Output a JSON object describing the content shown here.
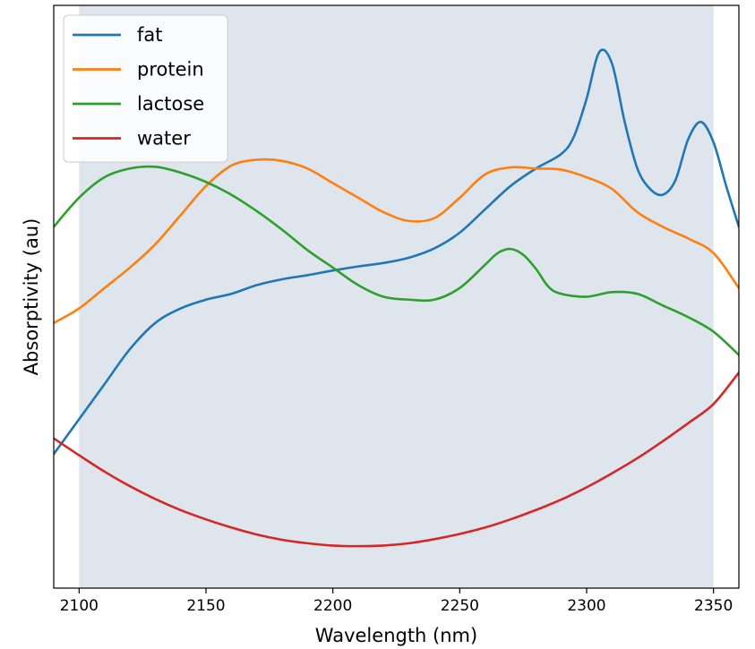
{
  "chart_data": {
    "type": "line",
    "title": "",
    "xlabel": "Wavelength (nm)",
    "ylabel": "Absorptivity (au)",
    "xlim": [
      2090,
      2360
    ],
    "ylim": [
      0,
      1
    ],
    "xticks": [
      2100,
      2150,
      2200,
      2250,
      2300,
      2350
    ],
    "yticks": [],
    "grid": false,
    "legend_position": "upper-left",
    "shaded_region": {
      "x_start": 2100,
      "x_end": 2350,
      "color": "#dfe5ec"
    },
    "series": [
      {
        "name": "fat",
        "color": "#1f77b4",
        "x": [
          2090,
          2100,
          2110,
          2120,
          2130,
          2140,
          2150,
          2160,
          2170,
          2180,
          2190,
          2200,
          2210,
          2220,
          2230,
          2240,
          2250,
          2260,
          2270,
          2280,
          2290,
          2295,
          2300,
          2305,
          2310,
          2315,
          2320,
          2325,
          2330,
          2335,
          2340,
          2345,
          2350,
          2355,
          2360
        ],
        "y": [
          0.23,
          0.29,
          0.35,
          0.41,
          0.455,
          0.48,
          0.495,
          0.505,
          0.52,
          0.53,
          0.537,
          0.545,
          0.552,
          0.558,
          0.567,
          0.583,
          0.61,
          0.65,
          0.69,
          0.72,
          0.745,
          0.775,
          0.84,
          0.92,
          0.9,
          0.8,
          0.72,
          0.685,
          0.675,
          0.7,
          0.77,
          0.8,
          0.765,
          0.69,
          0.62
        ]
      },
      {
        "name": "protein",
        "color": "#ff7f0e",
        "x": [
          2090,
          2100,
          2110,
          2120,
          2130,
          2140,
          2150,
          2160,
          2170,
          2180,
          2190,
          2200,
          2210,
          2220,
          2230,
          2240,
          2250,
          2260,
          2270,
          2280,
          2290,
          2300,
          2310,
          2320,
          2330,
          2340,
          2350,
          2360
        ],
        "y": [
          0.455,
          0.48,
          0.515,
          0.55,
          0.59,
          0.64,
          0.69,
          0.725,
          0.735,
          0.733,
          0.72,
          0.695,
          0.67,
          0.645,
          0.63,
          0.635,
          0.67,
          0.71,
          0.722,
          0.72,
          0.718,
          0.705,
          0.685,
          0.645,
          0.62,
          0.6,
          0.575,
          0.515
        ]
      },
      {
        "name": "lactose",
        "color": "#2ca02c",
        "x": [
          2090,
          2100,
          2110,
          2120,
          2130,
          2140,
          2150,
          2160,
          2170,
          2180,
          2190,
          2200,
          2210,
          2220,
          2230,
          2240,
          2250,
          2260,
          2265,
          2270,
          2275,
          2280,
          2285,
          2290,
          2300,
          2310,
          2320,
          2330,
          2340,
          2350,
          2360
        ],
        "y": [
          0.62,
          0.67,
          0.705,
          0.72,
          0.723,
          0.713,
          0.697,
          0.675,
          0.647,
          0.615,
          0.58,
          0.55,
          0.52,
          0.5,
          0.495,
          0.495,
          0.515,
          0.555,
          0.575,
          0.582,
          0.572,
          0.548,
          0.517,
          0.505,
          0.5,
          0.508,
          0.505,
          0.485,
          0.465,
          0.44,
          0.4
        ]
      },
      {
        "name": "water",
        "color": "#d62728",
        "x": [
          2090,
          2100,
          2110,
          2120,
          2130,
          2140,
          2150,
          2160,
          2170,
          2180,
          2190,
          2200,
          2210,
          2220,
          2230,
          2240,
          2250,
          2260,
          2270,
          2280,
          2290,
          2300,
          2310,
          2320,
          2330,
          2340,
          2350,
          2360
        ],
        "y": [
          0.257,
          0.228,
          0.2,
          0.175,
          0.153,
          0.134,
          0.118,
          0.104,
          0.092,
          0.083,
          0.077,
          0.073,
          0.072,
          0.073,
          0.077,
          0.084,
          0.093,
          0.104,
          0.118,
          0.134,
          0.152,
          0.173,
          0.197,
          0.223,
          0.252,
          0.283,
          0.316,
          0.37
        ]
      }
    ]
  }
}
